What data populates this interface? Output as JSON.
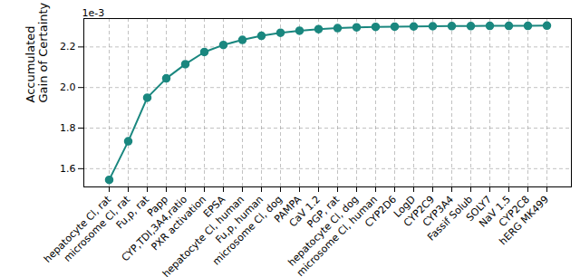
{
  "chart_data": {
    "type": "line",
    "ylabel": "Accumulated\nGain of Certainty",
    "annotations": [
      "1e-3"
    ],
    "categories": [
      "hepatocyte Cl, rat",
      "microsome Cl, rat",
      "Fu,p, rat",
      "Papp",
      "CYP,TDI,3A4,ratio",
      "PXR activation",
      "EPSA",
      "hepatocyte Cl, human",
      "Fu,p, human",
      "microsome Cl, dog",
      "PAMPA",
      "CaV 1.2",
      "PGP, rat",
      "hepatocyte Cl, dog",
      "microsome Cl, human",
      "CYP2D6",
      "LogD",
      "CYP2C9",
      "CYP3A4",
      "Fassif Solub",
      "SOLY7",
      "NaV 1.5",
      "CYP2C8",
      "hERG MK499"
    ],
    "values": [
      1.545,
      1.735,
      1.95,
      2.045,
      2.115,
      2.175,
      2.21,
      2.235,
      2.255,
      2.27,
      2.28,
      2.288,
      2.293,
      2.297,
      2.299,
      2.3,
      2.301,
      2.302,
      2.303,
      2.303,
      2.304,
      2.304,
      2.304,
      2.305
    ],
    "color": "#1a877f",
    "marker": "circle",
    "ylim": [
      1.51,
      2.34
    ],
    "yticks": [
      1.6,
      1.8,
      {
        "value": 2.0,
        "label": "2.0"
      },
      2.2
    ],
    "grid": true
  }
}
